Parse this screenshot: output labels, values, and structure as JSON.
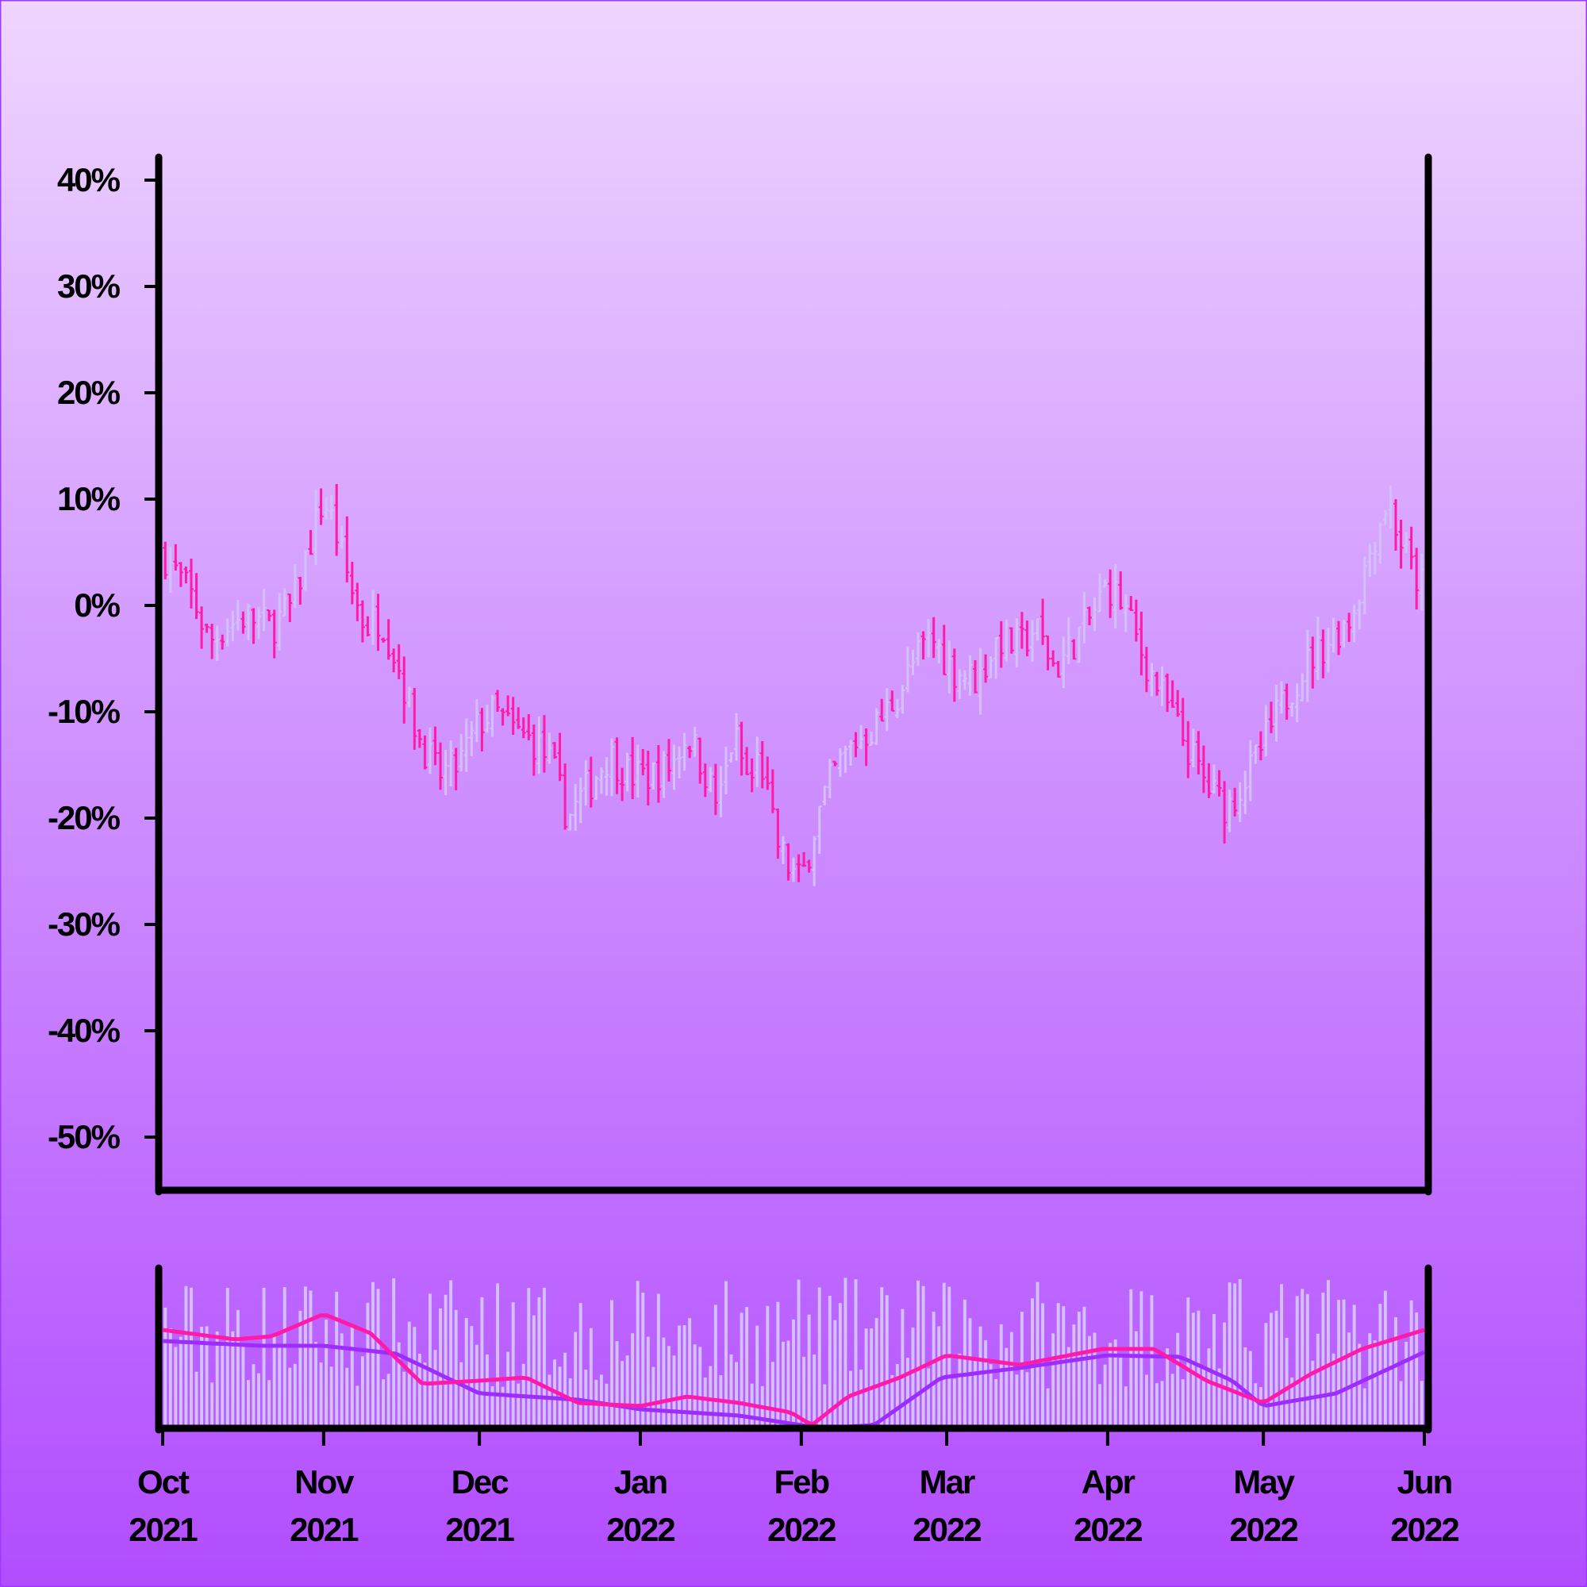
{
  "chart_data": {
    "type": "ohlc",
    "colors": {
      "up": "#d4c0ff",
      "down": "#ff1aa8",
      "volume": "#d4c0ff",
      "ma_fast": "#ff1aa8",
      "ma_slow": "#9d2cff",
      "axis": "#000000"
    },
    "price_axis": {
      "ylim": [
        -0.55,
        0.45
      ],
      "ticks": [
        0.4,
        0.3,
        0.2,
        0.1,
        0.0,
        -0.1,
        -0.2,
        -0.3,
        -0.4,
        -0.5
      ],
      "tick_labels": [
        "40%",
        "30%",
        "20%",
        "10%",
        "0%",
        "-10%",
        "-20%",
        "-30%",
        "-40%",
        "-50%"
      ]
    },
    "x_axis": {
      "start": "2021-10-01",
      "end": "2022-06-01",
      "ticks": [
        "2021-10-01",
        "2021-11-01",
        "2021-12-01",
        "2022-01-01",
        "2022-02-01",
        "2022-03-01",
        "2022-04-01",
        "2022-05-01",
        "2022-06-01"
      ],
      "tick_labels_month": [
        "Oct",
        "Nov",
        "Dec",
        "Jan",
        "Feb",
        "Mar",
        "Apr",
        "May",
        "Jun"
      ],
      "tick_labels_year": [
        "2021",
        "2021",
        "2021",
        "2022",
        "2022",
        "2022",
        "2022",
        "2022",
        "2022"
      ]
    },
    "price_path": [
      [
        "2021-10-01",
        0.05
      ],
      [
        "2021-10-03",
        0.035
      ],
      [
        "2021-10-05",
        0.02
      ],
      [
        "2021-10-07",
        0.005
      ],
      [
        "2021-10-10",
        -0.035
      ],
      [
        "2021-10-13",
        -0.02
      ],
      [
        "2021-10-17",
        -0.01
      ],
      [
        "2021-10-22",
        -0.02
      ],
      [
        "2021-10-26",
        0.0
      ],
      [
        "2021-10-30",
        0.07
      ],
      [
        "2021-11-01",
        0.1
      ],
      [
        "2021-11-03",
        0.075
      ],
      [
        "2021-11-06",
        0.02
      ],
      [
        "2021-11-09",
        -0.02
      ],
      [
        "2021-11-12",
        -0.01
      ],
      [
        "2021-11-15",
        -0.05
      ],
      [
        "2021-11-19",
        -0.12
      ],
      [
        "2021-11-23",
        -0.16
      ],
      [
        "2021-11-27",
        -0.15
      ],
      [
        "2021-12-01",
        -0.11
      ],
      [
        "2021-12-04",
        -0.1
      ],
      [
        "2021-12-08",
        -0.12
      ],
      [
        "2021-12-12",
        -0.13
      ],
      [
        "2021-12-15",
        -0.15
      ],
      [
        "2021-12-18",
        -0.2
      ],
      [
        "2021-12-22",
        -0.17
      ],
      [
        "2021-12-26",
        -0.14
      ],
      [
        "2021-12-30",
        -0.16
      ],
      [
        "2022-01-03",
        -0.16
      ],
      [
        "2022-01-07",
        -0.15
      ],
      [
        "2022-01-10",
        -0.12
      ],
      [
        "2022-01-13",
        -0.15
      ],
      [
        "2022-01-16",
        -0.19
      ],
      [
        "2022-01-19",
        -0.12
      ],
      [
        "2022-01-22",
        -0.17
      ],
      [
        "2022-01-24",
        -0.14
      ],
      [
        "2022-01-27",
        -0.22
      ],
      [
        "2022-01-30",
        -0.25
      ],
      [
        "2022-02-01",
        -0.26
      ],
      [
        "2022-02-04",
        -0.2
      ],
      [
        "2022-02-07",
        -0.16
      ],
      [
        "2022-02-11",
        -0.13
      ],
      [
        "2022-02-16",
        -0.11
      ],
      [
        "2022-02-20",
        -0.08
      ],
      [
        "2022-02-23",
        -0.05
      ],
      [
        "2022-02-26",
        -0.03
      ],
      [
        "2022-03-02",
        -0.06
      ],
      [
        "2022-03-07",
        -0.07
      ],
      [
        "2022-03-11",
        -0.03
      ],
      [
        "2022-03-15",
        -0.04
      ],
      [
        "2022-03-18",
        -0.02
      ],
      [
        "2022-03-22",
        -0.06
      ],
      [
        "2022-03-26",
        -0.03
      ],
      [
        "2022-03-29",
        -0.01
      ],
      [
        "2022-04-01",
        0.02
      ],
      [
        "2022-04-04",
        0.0
      ],
      [
        "2022-04-08",
        -0.05
      ],
      [
        "2022-04-12",
        -0.09
      ],
      [
        "2022-04-16",
        -0.13
      ],
      [
        "2022-04-20",
        -0.17
      ],
      [
        "2022-04-24",
        -0.19
      ],
      [
        "2022-04-28",
        -0.16
      ],
      [
        "2022-05-02",
        -0.12
      ],
      [
        "2022-05-06",
        -0.08
      ],
      [
        "2022-05-10",
        -0.05
      ],
      [
        "2022-05-14",
        -0.03
      ],
      [
        "2022-05-18",
        -0.01
      ],
      [
        "2022-05-22",
        0.06
      ],
      [
        "2022-05-25",
        0.1
      ],
      [
        "2022-05-28",
        0.05
      ],
      [
        "2022-05-31",
        0.02
      ]
    ],
    "ma_fast_path": [
      [
        "2021-10-01",
        0.62
      ],
      [
        "2021-10-15",
        0.56
      ],
      [
        "2021-10-22",
        0.58
      ],
      [
        "2021-11-01",
        0.72
      ],
      [
        "2021-11-10",
        0.6
      ],
      [
        "2021-11-20",
        0.28
      ],
      [
        "2021-12-01",
        0.3
      ],
      [
        "2021-12-10",
        0.32
      ],
      [
        "2021-12-20",
        0.16
      ],
      [
        "2022-01-01",
        0.14
      ],
      [
        "2022-01-10",
        0.2
      ],
      [
        "2022-01-20",
        0.16
      ],
      [
        "2022-01-30",
        0.1
      ],
      [
        "2022-02-03",
        0.02
      ],
      [
        "2022-02-10",
        0.2
      ],
      [
        "2022-02-20",
        0.32
      ],
      [
        "2022-03-01",
        0.46
      ],
      [
        "2022-03-15",
        0.4
      ],
      [
        "2022-03-31",
        0.5
      ],
      [
        "2022-04-10",
        0.5
      ],
      [
        "2022-04-20",
        0.3
      ],
      [
        "2022-05-01",
        0.16
      ],
      [
        "2022-05-10",
        0.34
      ],
      [
        "2022-05-20",
        0.5
      ],
      [
        "2022-06-01",
        0.62
      ]
    ],
    "ma_slow_path": [
      [
        "2021-10-01",
        0.55
      ],
      [
        "2021-10-20",
        0.52
      ],
      [
        "2021-11-01",
        0.52
      ],
      [
        "2021-11-15",
        0.47
      ],
      [
        "2021-12-01",
        0.22
      ],
      [
        "2021-12-20",
        0.18
      ],
      [
        "2022-01-01",
        0.12
      ],
      [
        "2022-01-20",
        0.08
      ],
      [
        "2022-02-05",
        0.0
      ],
      [
        "2022-02-15",
        0.02
      ],
      [
        "2022-02-28",
        0.32
      ],
      [
        "2022-03-15",
        0.38
      ],
      [
        "2022-04-01",
        0.46
      ],
      [
        "2022-04-15",
        0.45
      ],
      [
        "2022-04-25",
        0.3
      ],
      [
        "2022-05-01",
        0.14
      ],
      [
        "2022-05-15",
        0.22
      ],
      [
        "2022-06-01",
        0.48
      ]
    ]
  }
}
